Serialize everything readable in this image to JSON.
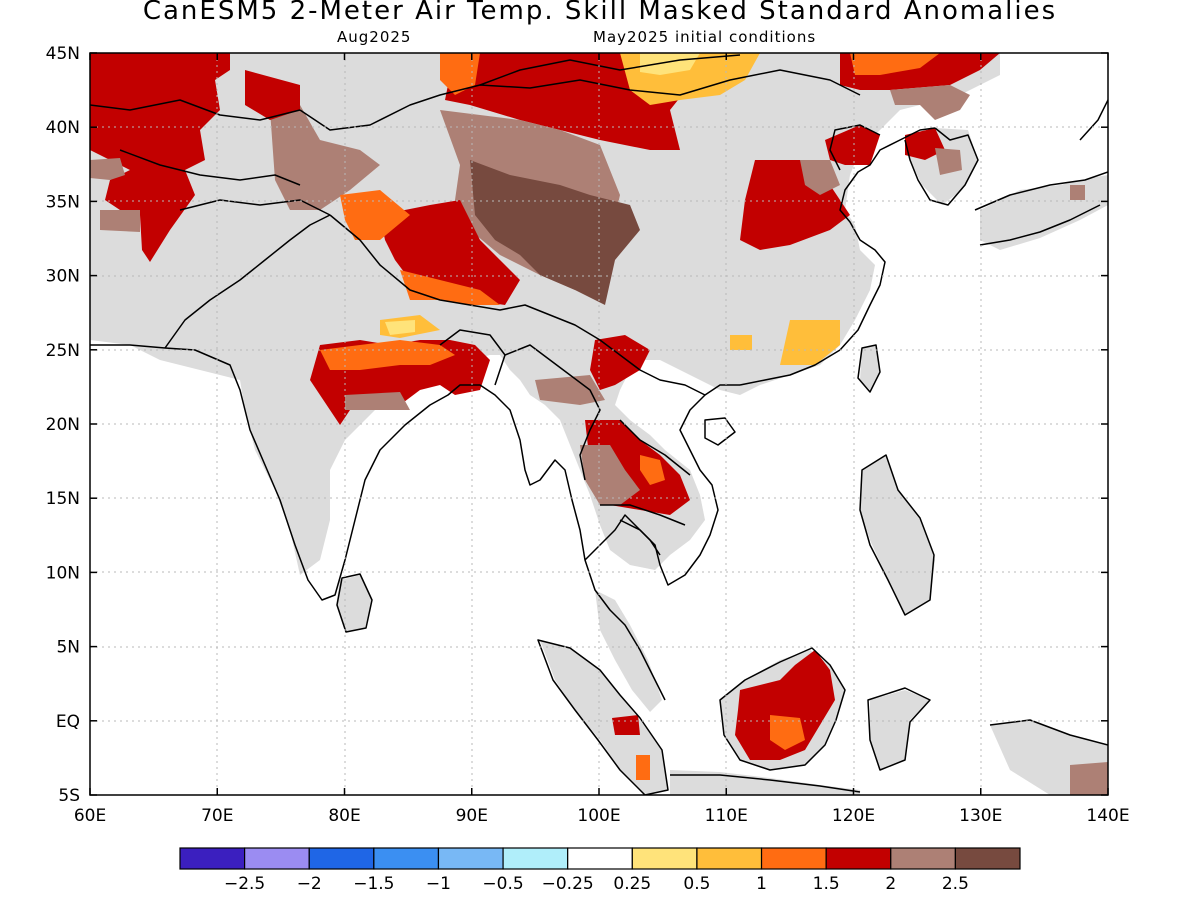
{
  "header": {
    "title": "CanESM5 2-Meter Air Temp. Skill Masked Standard Anomalies",
    "target_month": "Aug2025",
    "initial_conditions": "May2025 initial conditions"
  },
  "map": {
    "lon_range": [
      60,
      140
    ],
    "lat_range": [
      -5,
      45
    ],
    "lon_ticks": [
      {
        "lon": 60,
        "label": "60E"
      },
      {
        "lon": 70,
        "label": "70E"
      },
      {
        "lon": 80,
        "label": "80E"
      },
      {
        "lon": 90,
        "label": "90E"
      },
      {
        "lon": 100,
        "label": "100E"
      },
      {
        "lon": 110,
        "label": "110E"
      },
      {
        "lon": 120,
        "label": "120E"
      },
      {
        "lon": 130,
        "label": "130E"
      },
      {
        "lon": 140,
        "label": "140E"
      }
    ],
    "lat_ticks": [
      {
        "lat": 45,
        "label": "45N"
      },
      {
        "lat": 40,
        "label": "40N"
      },
      {
        "lat": 35,
        "label": "35N"
      },
      {
        "lat": 30,
        "label": "30N"
      },
      {
        "lat": 25,
        "label": "25N"
      },
      {
        "lat": 20,
        "label": "20N"
      },
      {
        "lat": 15,
        "label": "15N"
      },
      {
        "lat": 10,
        "label": "10N"
      },
      {
        "lat": 5,
        "label": "5N"
      },
      {
        "lat": 0,
        "label": "EQ"
      },
      {
        "lat": -5,
        "label": "5S"
      }
    ],
    "colors": {
      "masked_land": "#dcdcdc",
      "ocean": "#ffffff",
      "coastline": "#000000",
      "grid": "#bbbbbb"
    }
  },
  "colorbar": {
    "colors": [
      "#3b1fbf",
      "#9b8cf2",
      "#1f66e6",
      "#3b8ff2",
      "#78b8f5",
      "#b0eefa",
      "#ffffff",
      "#ffe37a",
      "#ffbe3a",
      "#ff6c12",
      "#c20000",
      "#ad8075",
      "#774a3f"
    ],
    "labels": [
      "-2.5",
      "-2",
      "-1.5",
      "-1",
      "-0.5",
      "-0.25",
      "0.25",
      "0.5",
      "1",
      "1.5",
      "2",
      "2.5"
    ]
  }
}
